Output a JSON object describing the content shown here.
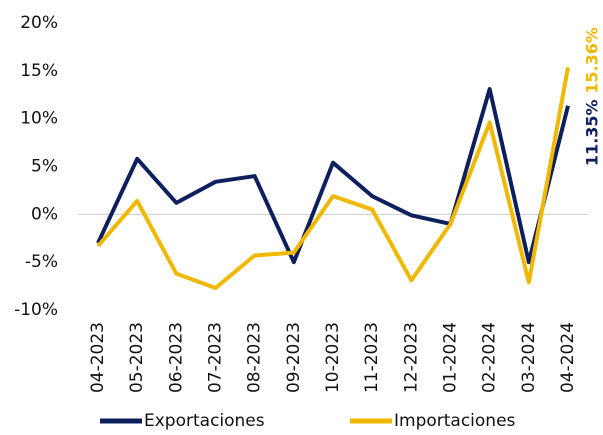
{
  "chart_data": {
    "type": "line",
    "categories": [
      "04-2023",
      "05-2023",
      "06-2023",
      "07-2023",
      "08-2023",
      "09-2023",
      "10-2023",
      "11-2023",
      "12-2023",
      "01-2024",
      "02-2024",
      "03-2024",
      "04-2024"
    ],
    "series": [
      {
        "name": "Exportaciones",
        "color": "#0d1f5c",
        "values": [
          -3.0,
          5.8,
          1.2,
          3.4,
          4.0,
          -5.0,
          5.4,
          1.9,
          -0.1,
          -1.0,
          13.1,
          -5.0,
          11.35
        ],
        "value_labels": [
          null,
          null,
          null,
          null,
          null,
          null,
          null,
          null,
          null,
          null,
          null,
          null,
          "11.35%"
        ]
      },
      {
        "name": "Importaciones",
        "color": "#f0b800",
        "values": [
          -3.3,
          1.4,
          -6.2,
          -7.7,
          -4.3,
          -4.0,
          1.9,
          0.5,
          -6.9,
          -1.0,
          9.6,
          -7.1,
          15.36
        ],
        "value_labels": [
          null,
          null,
          null,
          null,
          null,
          null,
          null,
          null,
          null,
          null,
          null,
          null,
          "15.36%"
        ]
      }
    ],
    "ylim": [
      -10,
      20
    ],
    "yticks": [
      {
        "value": -10,
        "label": "-10%"
      },
      {
        "value": -5,
        "label": "-5%"
      },
      {
        "value": 0,
        "label": "0%"
      },
      {
        "value": 5,
        "label": "5%"
      },
      {
        "value": 10,
        "label": "10%"
      },
      {
        "value": 15,
        "label": "15%"
      },
      {
        "value": 20,
        "label": "20%"
      }
    ],
    "zero_line": true,
    "legend": "bottom"
  }
}
